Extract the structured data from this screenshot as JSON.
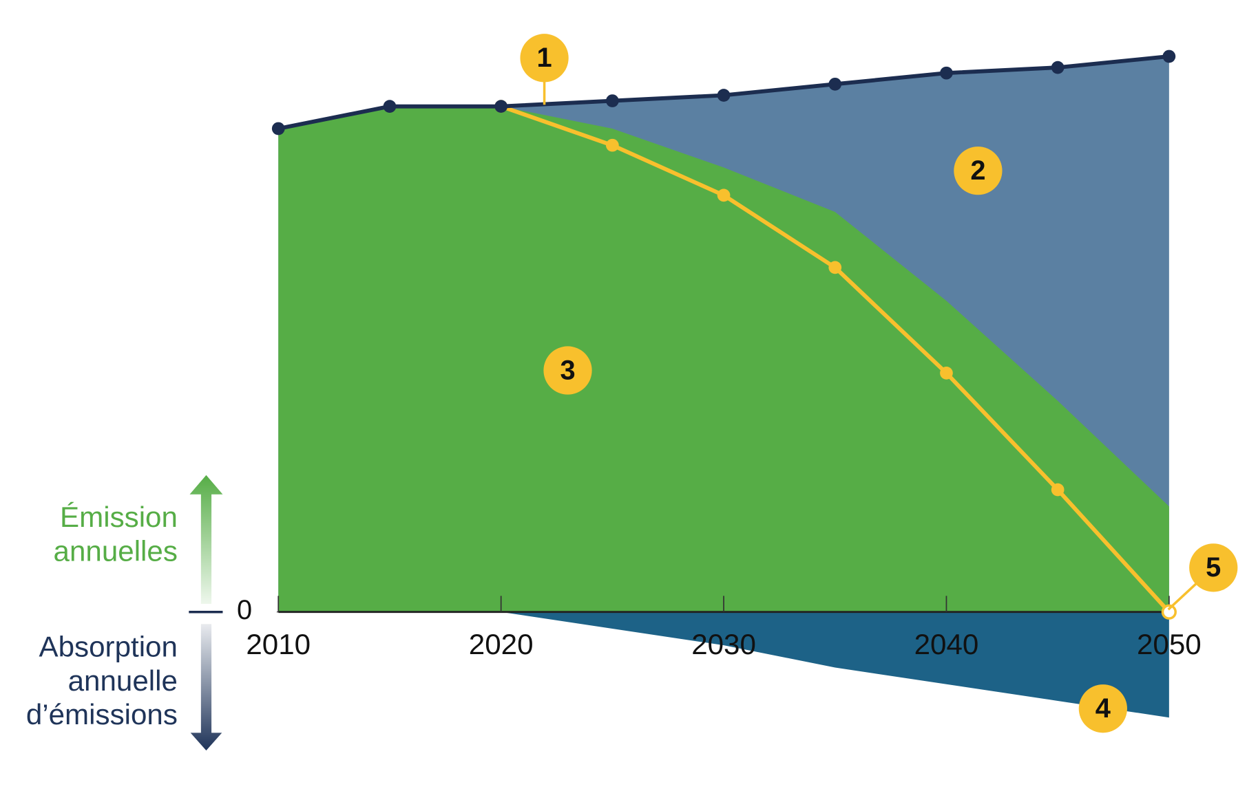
{
  "chart_data": {
    "type": "area",
    "x": [
      2010,
      2015,
      2020,
      2025,
      2030,
      2035,
      2040,
      2045,
      2050
    ],
    "xlim": [
      2010,
      2050
    ],
    "xticks": [
      2010,
      2020,
      2030,
      2040,
      2050
    ],
    "ylim": [
      -25,
      105
    ],
    "yticks": [
      0
    ],
    "y_label_up": [
      "Émission",
      "annuelles"
    ],
    "y_label_up_color": "#56ad46",
    "y_label_down": [
      "Absorption",
      "annuelle",
      "d’émissions"
    ],
    "y_label_down_color": "#1f3459",
    "series": [
      {
        "color": "#1c2d50",
        "fill_color": "#5b80a2",
        "markers": true,
        "values": [
          87,
          91,
          91,
          92,
          93,
          95,
          97,
          98,
          100
        ]
      },
      {
        "fill_color": "#56ad46",
        "values": [
          87,
          91,
          91,
          87,
          80,
          72,
          56,
          38,
          19
        ]
      },
      {
        "fill_color": "#1d6287",
        "values": [
          null,
          null,
          0,
          -3,
          -6,
          -10,
          -13,
          -16,
          -19
        ]
      },
      {
        "color": "#f8c02d",
        "markers": true,
        "values": [
          null,
          null,
          91,
          84,
          75,
          62,
          43,
          22,
          0
        ]
      }
    ],
    "annotations": [
      "1",
      "2",
      "3",
      "4",
      "5"
    ],
    "annotation_color": "#f8c02d"
  }
}
